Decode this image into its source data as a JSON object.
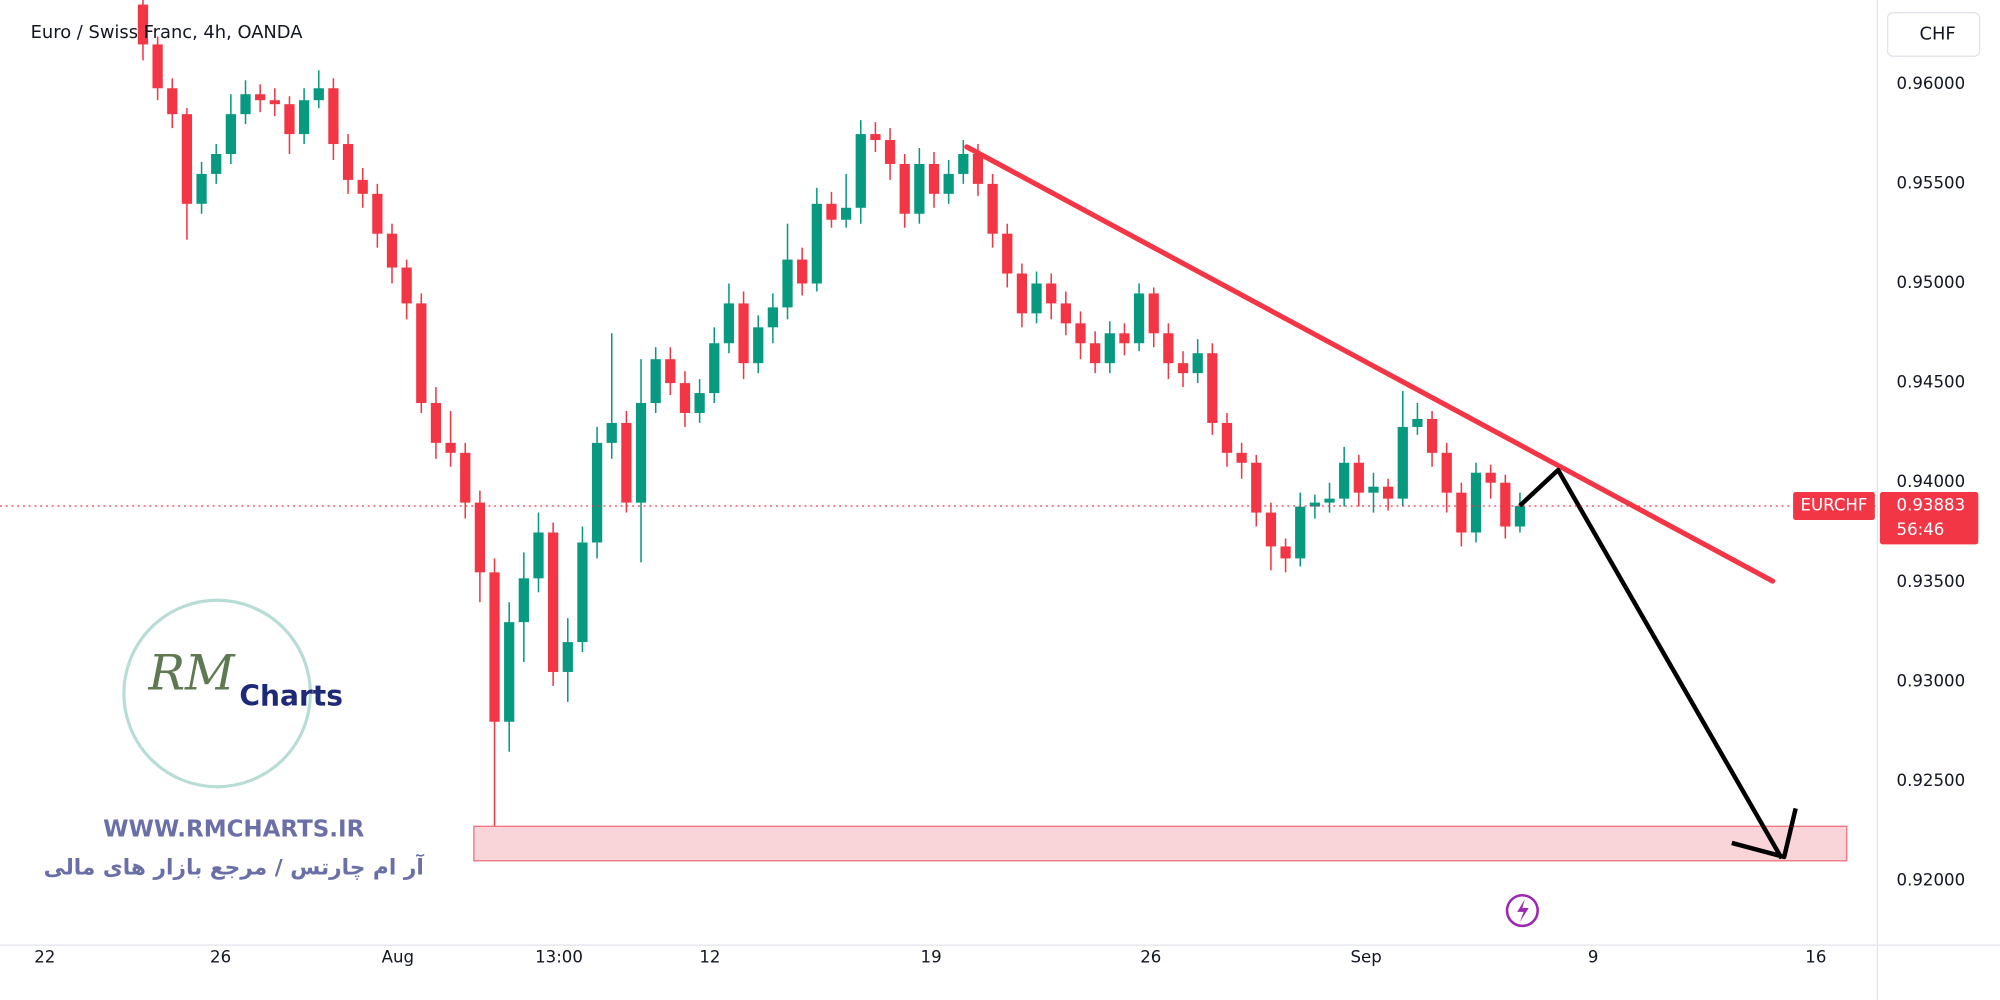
{
  "chart_data": {
    "type": "candlestick",
    "title": "Euro / Swiss Franc, 4h, OANDA",
    "currency": "CHF",
    "up_color": "#089981",
    "down_color": "#f23645",
    "open": [
      0.964,
      0.962,
      0.9598,
      0.9585,
      0.954,
      0.9555,
      0.9565,
      0.9585,
      0.9595,
      0.9592,
      0.959,
      0.9575,
      0.9592,
      0.9598,
      0.957,
      0.9552,
      0.9545,
      0.9525,
      0.9508,
      0.949,
      0.944,
      0.942,
      0.9415,
      0.939,
      0.9355,
      0.928,
      0.933,
      0.9352,
      0.9375,
      0.9305,
      0.932,
      0.937,
      0.942,
      0.943,
      0.939,
      0.944,
      0.9462,
      0.945,
      0.9435,
      0.9445,
      0.947,
      0.949,
      0.946,
      0.9478,
      0.9488,
      0.9512,
      0.95,
      0.954,
      0.9532,
      0.9538,
      0.9575,
      0.9572,
      0.956,
      0.9535,
      0.956,
      0.9545,
      0.9555,
      0.9565,
      0.955,
      0.9525,
      0.9505,
      0.9485,
      0.95,
      0.949,
      0.948,
      0.947,
      0.946,
      0.9475,
      0.947,
      0.9495,
      0.9475,
      0.946,
      0.9455,
      0.9465,
      0.943,
      0.9415,
      0.941,
      0.9385,
      0.9368,
      0.9362,
      0.9388,
      0.939,
      0.9392,
      0.941,
      0.9395,
      0.9398,
      0.9392,
      0.9428,
      0.9432,
      0.9415,
      0.9395,
      0.9375,
      0.9405,
      0.94,
      0.9378
    ],
    "high": [
      0.9645,
      0.9624,
      0.9603,
      0.9588,
      0.9561,
      0.957,
      0.9595,
      0.9602,
      0.96,
      0.9598,
      0.9594,
      0.9598,
      0.9607,
      0.9603,
      0.9575,
      0.9558,
      0.955,
      0.953,
      0.9512,
      0.9495,
      0.9448,
      0.9436,
      0.942,
      0.9396,
      0.9362,
      0.934,
      0.9365,
      0.9385,
      0.938,
      0.9332,
      0.9378,
      0.9428,
      0.9475,
      0.9436,
      0.9462,
      0.9468,
      0.9468,
      0.9456,
      0.9452,
      0.9478,
      0.95,
      0.9496,
      0.9484,
      0.9495,
      0.953,
      0.9518,
      0.9548,
      0.9546,
      0.9555,
      0.9582,
      0.9581,
      0.9578,
      0.9565,
      0.9568,
      0.9566,
      0.9562,
      0.9572,
      0.957,
      0.9555,
      0.953,
      0.951,
      0.9506,
      0.9505,
      0.9496,
      0.9486,
      0.9476,
      0.9481,
      0.948,
      0.95,
      0.9498,
      0.948,
      0.9466,
      0.9472,
      0.947,
      0.9435,
      0.942,
      0.9414,
      0.939,
      0.9372,
      0.9395,
      0.9394,
      0.94,
      0.9418,
      0.9414,
      0.9405,
      0.9402,
      0.9446,
      0.944,
      0.9436,
      0.942,
      0.94,
      0.941,
      0.9409,
      0.9404,
      0.9395
    ],
    "low": [
      0.9612,
      0.9592,
      0.9578,
      0.9522,
      0.9535,
      0.955,
      0.956,
      0.958,
      0.9586,
      0.9584,
      0.9565,
      0.957,
      0.9588,
      0.9562,
      0.9545,
      0.9538,
      0.9518,
      0.95,
      0.9482,
      0.9435,
      0.9412,
      0.9408,
      0.9382,
      0.934,
      0.9225,
      0.9265,
      0.931,
      0.9345,
      0.9298,
      0.929,
      0.9315,
      0.9362,
      0.9412,
      0.9385,
      0.936,
      0.9435,
      0.9444,
      0.9428,
      0.943,
      0.944,
      0.9465,
      0.9452,
      0.9455,
      0.947,
      0.9482,
      0.9494,
      0.9496,
      0.9528,
      0.9528,
      0.953,
      0.9566,
      0.9552,
      0.9528,
      0.953,
      0.9538,
      0.954,
      0.955,
      0.9544,
      0.9518,
      0.9498,
      0.9478,
      0.948,
      0.9482,
      0.9474,
      0.9462,
      0.9455,
      0.9455,
      0.9464,
      0.9466,
      0.9468,
      0.9452,
      0.9448,
      0.945,
      0.9424,
      0.9408,
      0.9402,
      0.9378,
      0.9356,
      0.9355,
      0.9358,
      0.9382,
      0.9385,
      0.9388,
      0.9388,
      0.9385,
      0.9386,
      0.9388,
      0.9424,
      0.9408,
      0.9385,
      0.9368,
      0.937,
      0.9392,
      0.9372,
      0.9375
    ],
    "close": [
      0.962,
      0.9598,
      0.9585,
      0.954,
      0.9555,
      0.9565,
      0.9585,
      0.9595,
      0.9592,
      0.959,
      0.9575,
      0.9592,
      0.9598,
      0.957,
      0.9552,
      0.9545,
      0.9525,
      0.9508,
      0.949,
      0.944,
      0.942,
      0.9415,
      0.939,
      0.9355,
      0.928,
      0.933,
      0.9352,
      0.9375,
      0.9305,
      0.932,
      0.937,
      0.942,
      0.943,
      0.939,
      0.944,
      0.9462,
      0.945,
      0.9435,
      0.9445,
      0.947,
      0.949,
      0.946,
      0.9478,
      0.9488,
      0.9512,
      0.95,
      0.954,
      0.9532,
      0.9538,
      0.9575,
      0.9572,
      0.956,
      0.9535,
      0.956,
      0.9545,
      0.9555,
      0.9565,
      0.955,
      0.9525,
      0.9505,
      0.9485,
      0.95,
      0.949,
      0.948,
      0.947,
      0.946,
      0.9475,
      0.947,
      0.9495,
      0.9475,
      0.946,
      0.9455,
      0.9465,
      0.943,
      0.9415,
      0.941,
      0.9385,
      0.9368,
      0.9362,
      0.9388,
      0.939,
      0.9392,
      0.941,
      0.9395,
      0.9398,
      0.9392,
      0.9428,
      0.9432,
      0.9415,
      0.9395,
      0.9375,
      0.9405,
      0.94,
      0.9378,
      0.93883
    ],
    "xlim": [
      -9.76,
      118.4
    ],
    "xticks": [
      {
        "value": -6.7,
        "label": "22"
      },
      {
        "value": 5.3,
        "label": "26"
      },
      {
        "value": 17.4,
        "label": "Aug"
      },
      {
        "value": 28.4,
        "label": "13:00"
      },
      {
        "value": 38.7,
        "label": "12"
      },
      {
        "value": 53.8,
        "label": "19"
      },
      {
        "value": 68.8,
        "label": "26"
      },
      {
        "value": 83.5,
        "label": "Sep"
      },
      {
        "value": 99.0,
        "label": "9"
      },
      {
        "value": 114.2,
        "label": "16"
      }
    ],
    "ylim": [
      0.91679,
      0.96423
    ],
    "yticks": [
      {
        "value": 0.92,
        "label": "0.92000"
      },
      {
        "value": 0.925,
        "label": "0.92500"
      },
      {
        "value": 0.93,
        "label": "0.93000"
      },
      {
        "value": 0.935,
        "label": "0.93500"
      },
      {
        "value": 0.94,
        "label": "0.94000"
      },
      {
        "value": 0.945,
        "label": "0.94500"
      },
      {
        "value": 0.95,
        "label": "0.95000"
      },
      {
        "value": 0.955,
        "label": "0.95500"
      },
      {
        "value": 0.96,
        "label": "0.96000"
      }
    ],
    "grid": false,
    "last_price": {
      "symbol": "EURCHF",
      "value": 0.93883,
      "countdown": "56:46"
    },
    "watermark": {
      "logo_mark": "RM",
      "logo": "Charts",
      "url": "WWW.RMCHARTS.IR",
      "tagline": "آر ام چارتس / مرجع بازار های مالی"
    }
  }
}
